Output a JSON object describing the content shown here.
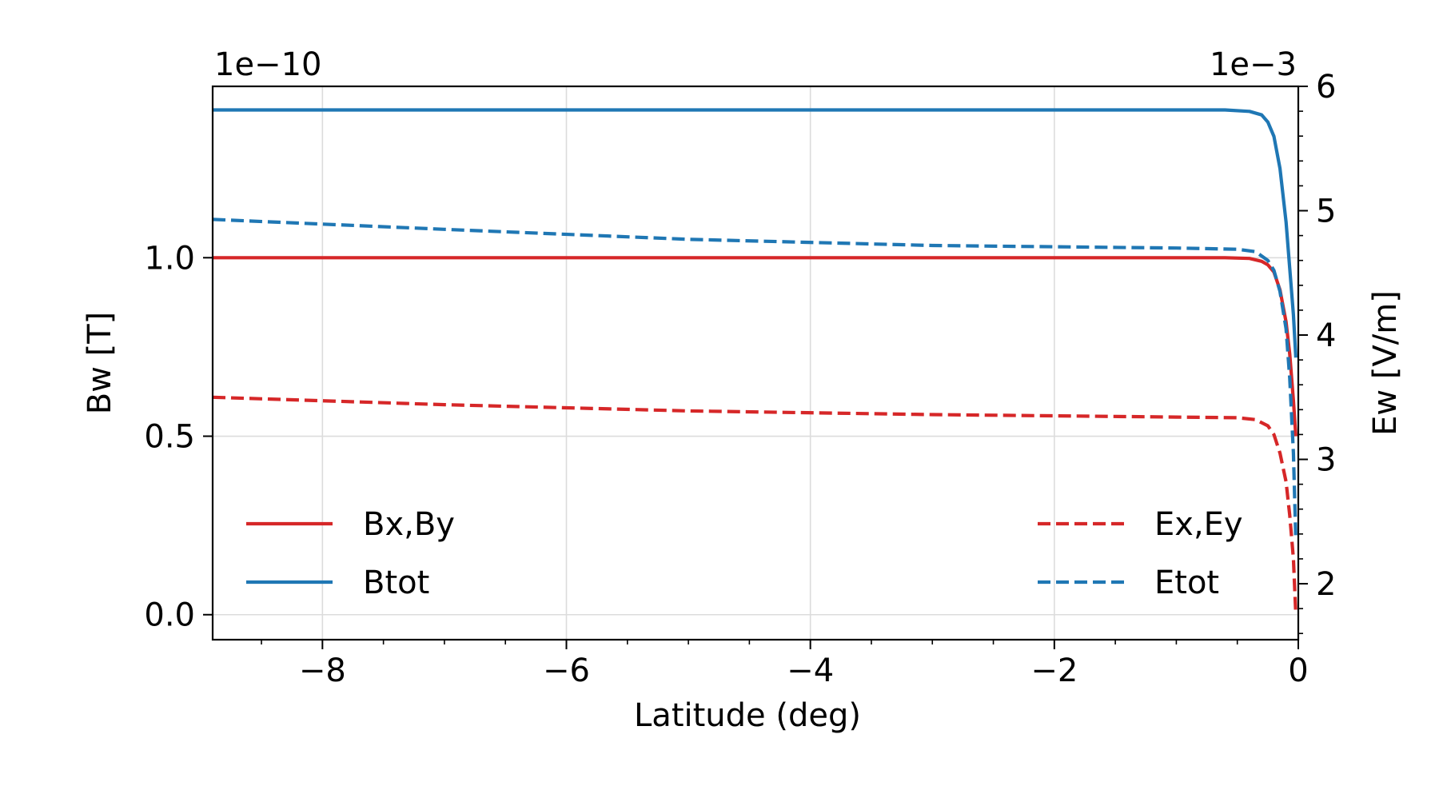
{
  "chart_data": {
    "type": "line",
    "xlabel": "Latitude (deg)",
    "xlim": [
      -8.9,
      0
    ],
    "x_ticks": [
      -8,
      -6,
      -4,
      -2,
      0
    ],
    "x_tick_labels": [
      "−8",
      "−6",
      "−4",
      "−2",
      "0"
    ],
    "left_axis": {
      "label": "Bw [T]",
      "offset_text": "1e−10",
      "lim": [
        -0.07,
        1.48
      ],
      "ticks": [
        0.0,
        0.5,
        1.0
      ],
      "tick_labels": [
        "0.0",
        "0.5",
        "1.0"
      ]
    },
    "right_axis": {
      "label": "Ew [V/m]",
      "offset_text": "1e−3",
      "lim": [
        1.55,
        6.0
      ],
      "ticks": [
        2,
        3,
        4,
        5,
        6
      ],
      "tick_labels": [
        "2",
        "3",
        "4",
        "5",
        "6"
      ]
    },
    "grid": true,
    "series": [
      {
        "name": "Bx,By",
        "axis": "left",
        "color": "#d62728",
        "style": "solid",
        "points": [
          [
            -8.9,
            1.0
          ],
          [
            -6,
            1.0
          ],
          [
            -4,
            1.0
          ],
          [
            -2,
            1.0
          ],
          [
            -0.6,
            1.0
          ],
          [
            -0.4,
            0.998
          ],
          [
            -0.3,
            0.99
          ],
          [
            -0.25,
            0.98
          ],
          [
            -0.2,
            0.96
          ],
          [
            -0.15,
            0.91
          ],
          [
            -0.1,
            0.82
          ],
          [
            -0.07,
            0.73
          ],
          [
            -0.04,
            0.6
          ],
          [
            -0.02,
            0.5
          ]
        ]
      },
      {
        "name": "Btot",
        "axis": "left",
        "color": "#1f77b4",
        "style": "solid",
        "points": [
          [
            -8.9,
            1.414
          ],
          [
            -6,
            1.414
          ],
          [
            -4,
            1.414
          ],
          [
            -2,
            1.414
          ],
          [
            -0.6,
            1.414
          ],
          [
            -0.4,
            1.41
          ],
          [
            -0.3,
            1.4
          ],
          [
            -0.25,
            1.38
          ],
          [
            -0.2,
            1.34
          ],
          [
            -0.15,
            1.25
          ],
          [
            -0.1,
            1.1
          ],
          [
            -0.07,
            0.97
          ],
          [
            -0.04,
            0.84
          ],
          [
            -0.02,
            0.72
          ]
        ]
      },
      {
        "name": "Ex,Ey",
        "axis": "right",
        "color": "#d62728",
        "style": "dashed",
        "points": [
          [
            -8.9,
            3.5
          ],
          [
            -7,
            3.44
          ],
          [
            -5,
            3.39
          ],
          [
            -3,
            3.36
          ],
          [
            -1,
            3.34
          ],
          [
            -0.5,
            3.335
          ],
          [
            -0.35,
            3.32
          ],
          [
            -0.25,
            3.27
          ],
          [
            -0.2,
            3.2
          ],
          [
            -0.15,
            3.05
          ],
          [
            -0.1,
            2.82
          ],
          [
            -0.07,
            2.55
          ],
          [
            -0.04,
            2.2
          ],
          [
            -0.02,
            1.75
          ]
        ]
      },
      {
        "name": "Etot",
        "axis": "right",
        "color": "#1f77b4",
        "style": "dashed",
        "points": [
          [
            -8.9,
            4.93
          ],
          [
            -7,
            4.85
          ],
          [
            -5,
            4.77
          ],
          [
            -3,
            4.72
          ],
          [
            -1,
            4.7
          ],
          [
            -0.5,
            4.69
          ],
          [
            -0.35,
            4.67
          ],
          [
            -0.25,
            4.6
          ],
          [
            -0.2,
            4.52
          ],
          [
            -0.15,
            4.35
          ],
          [
            -0.1,
            4.05
          ],
          [
            -0.07,
            3.65
          ],
          [
            -0.04,
            3.05
          ],
          [
            -0.02,
            2.35
          ]
        ]
      }
    ],
    "legends": [
      {
        "placement": "lower-left",
        "entries": [
          "Bx,By",
          "Btot"
        ]
      },
      {
        "placement": "lower-right",
        "entries": [
          "Ex,Ey",
          "Etot"
        ]
      }
    ]
  }
}
